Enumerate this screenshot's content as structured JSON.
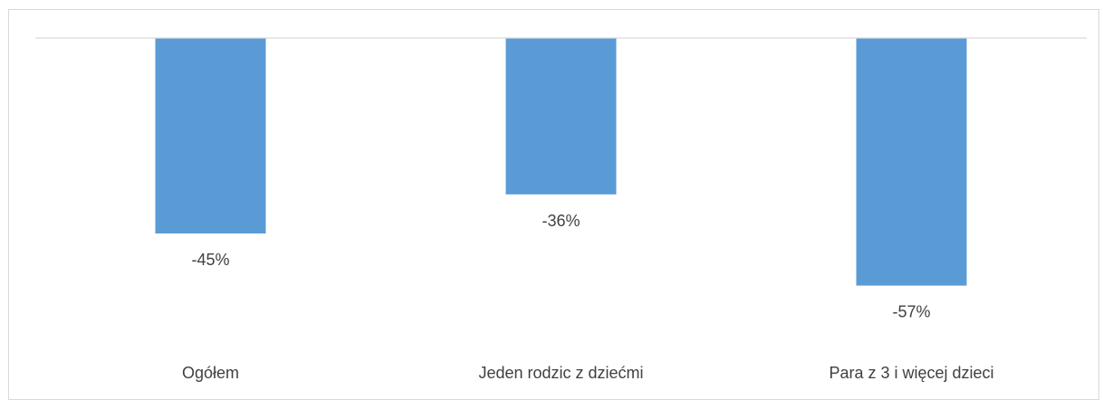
{
  "chart_data": {
    "type": "bar",
    "orientation": "vertical",
    "title": "",
    "xlabel": "",
    "ylabel": "",
    "categories": [
      "Ogółem",
      "Jeden rodzic z dziećmi",
      "Para z 3 i więcej dzieci"
    ],
    "values": [
      -45,
      -36,
      -57
    ],
    "data_labels": [
      "-45%",
      "-36%",
      "-57%"
    ],
    "ylim": [
      -60,
      0
    ],
    "grid": false,
    "legend": "none",
    "bar_color": "#5b9bd5",
    "axis_color": "#d9d9d9",
    "label_color": "#404040"
  }
}
